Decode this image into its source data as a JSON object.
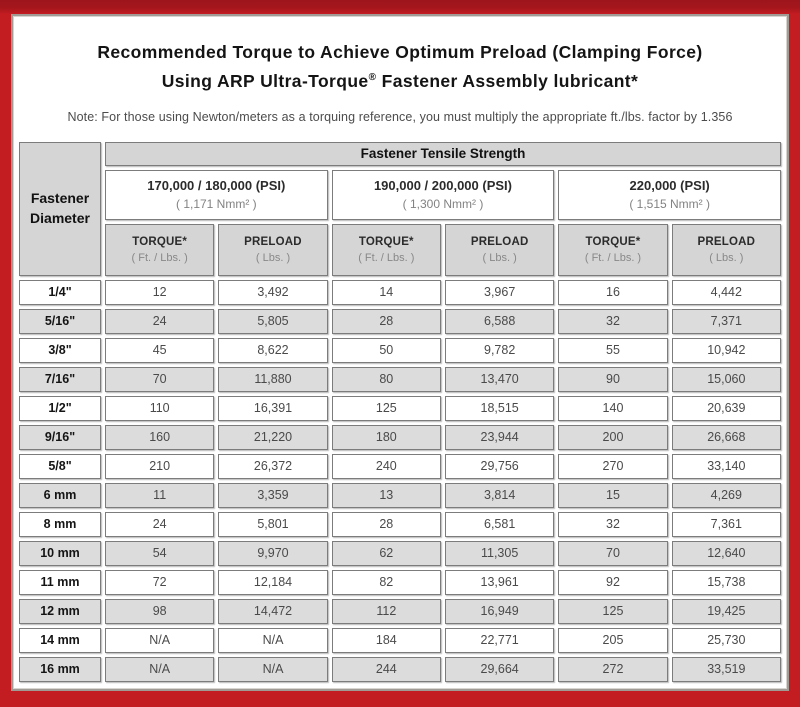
{
  "title": {
    "line1": "Recommended Torque to Achieve Optimum Preload (Clamping Force)",
    "line2_a": "Using ARP Ultra-Torque",
    "line2_reg": "®",
    "line2_b": " Fastener Assembly lubricant*",
    "note": "Note: For those using Newton/meters as a torquing reference, you must multiply the appropriate ft./lbs. factor by 1.356"
  },
  "colors": {
    "frame_red": "#c31c21",
    "frame_red_dark": "#9d151b",
    "panel_border_gray": "#a19b95",
    "header_gray": "#d5d5d5",
    "shaded_row_gray": "#dcdcdc",
    "cell_border_gray": "#7c7c7c"
  },
  "table": {
    "corner": {
      "line1": "Fastener",
      "line2": "Diameter"
    },
    "tensile_header": "Fastener Tensile Strength",
    "groups": [
      {
        "psi": "170,000 / 180,000 (PSI)",
        "nmm": "( 1,171 Nmm² )"
      },
      {
        "psi": "190,000 / 200,000 (PSI)",
        "nmm": "( 1,300 Nmm² )"
      },
      {
        "psi": "220,000 (PSI)",
        "nmm": "( 1,515 Nmm² )"
      }
    ],
    "subcols": {
      "torque_label": "TORQUE*",
      "torque_unit": "( Ft. / Lbs. )",
      "preload_label": "PRELOAD",
      "preload_unit": "( Lbs. )"
    },
    "rows": [
      {
        "d": "1/4\"",
        "shaded": false,
        "v": [
          "12",
          "3,492",
          "14",
          "3,967",
          "16",
          "4,442"
        ]
      },
      {
        "d": "5/16\"",
        "shaded": true,
        "v": [
          "24",
          "5,805",
          "28",
          "6,588",
          "32",
          "7,371"
        ]
      },
      {
        "d": "3/8\"",
        "shaded": false,
        "v": [
          "45",
          "8,622",
          "50",
          "9,782",
          "55",
          "10,942"
        ]
      },
      {
        "d": "7/16\"",
        "shaded": true,
        "v": [
          "70",
          "11,880",
          "80",
          "13,470",
          "90",
          "15,060"
        ]
      },
      {
        "d": "1/2\"",
        "shaded": false,
        "v": [
          "110",
          "16,391",
          "125",
          "18,515",
          "140",
          "20,639"
        ]
      },
      {
        "d": "9/16\"",
        "shaded": true,
        "v": [
          "160",
          "21,220",
          "180",
          "23,944",
          "200",
          "26,668"
        ]
      },
      {
        "d": "5/8\"",
        "shaded": false,
        "v": [
          "210",
          "26,372",
          "240",
          "29,756",
          "270",
          "33,140"
        ]
      },
      {
        "d": "6 mm",
        "shaded": true,
        "v": [
          "11",
          "3,359",
          "13",
          "3,814",
          "15",
          "4,269"
        ]
      },
      {
        "d": "8 mm",
        "shaded": false,
        "v": [
          "24",
          "5,801",
          "28",
          "6,581",
          "32",
          "7,361"
        ]
      },
      {
        "d": "10 mm",
        "shaded": true,
        "v": [
          "54",
          "9,970",
          "62",
          "11,305",
          "70",
          "12,640"
        ]
      },
      {
        "d": "11 mm",
        "shaded": false,
        "v": [
          "72",
          "12,184",
          "82",
          "13,961",
          "92",
          "15,738"
        ]
      },
      {
        "d": "12 mm",
        "shaded": true,
        "v": [
          "98",
          "14,472",
          "112",
          "16,949",
          "125",
          "19,425"
        ]
      },
      {
        "d": "14 mm",
        "shaded": false,
        "v": [
          "N/A",
          "N/A",
          "184",
          "22,771",
          "205",
          "25,730"
        ]
      },
      {
        "d": "16 mm",
        "shaded": true,
        "v": [
          "N/A",
          "N/A",
          "244",
          "29,664",
          "272",
          "33,519"
        ]
      }
    ]
  }
}
